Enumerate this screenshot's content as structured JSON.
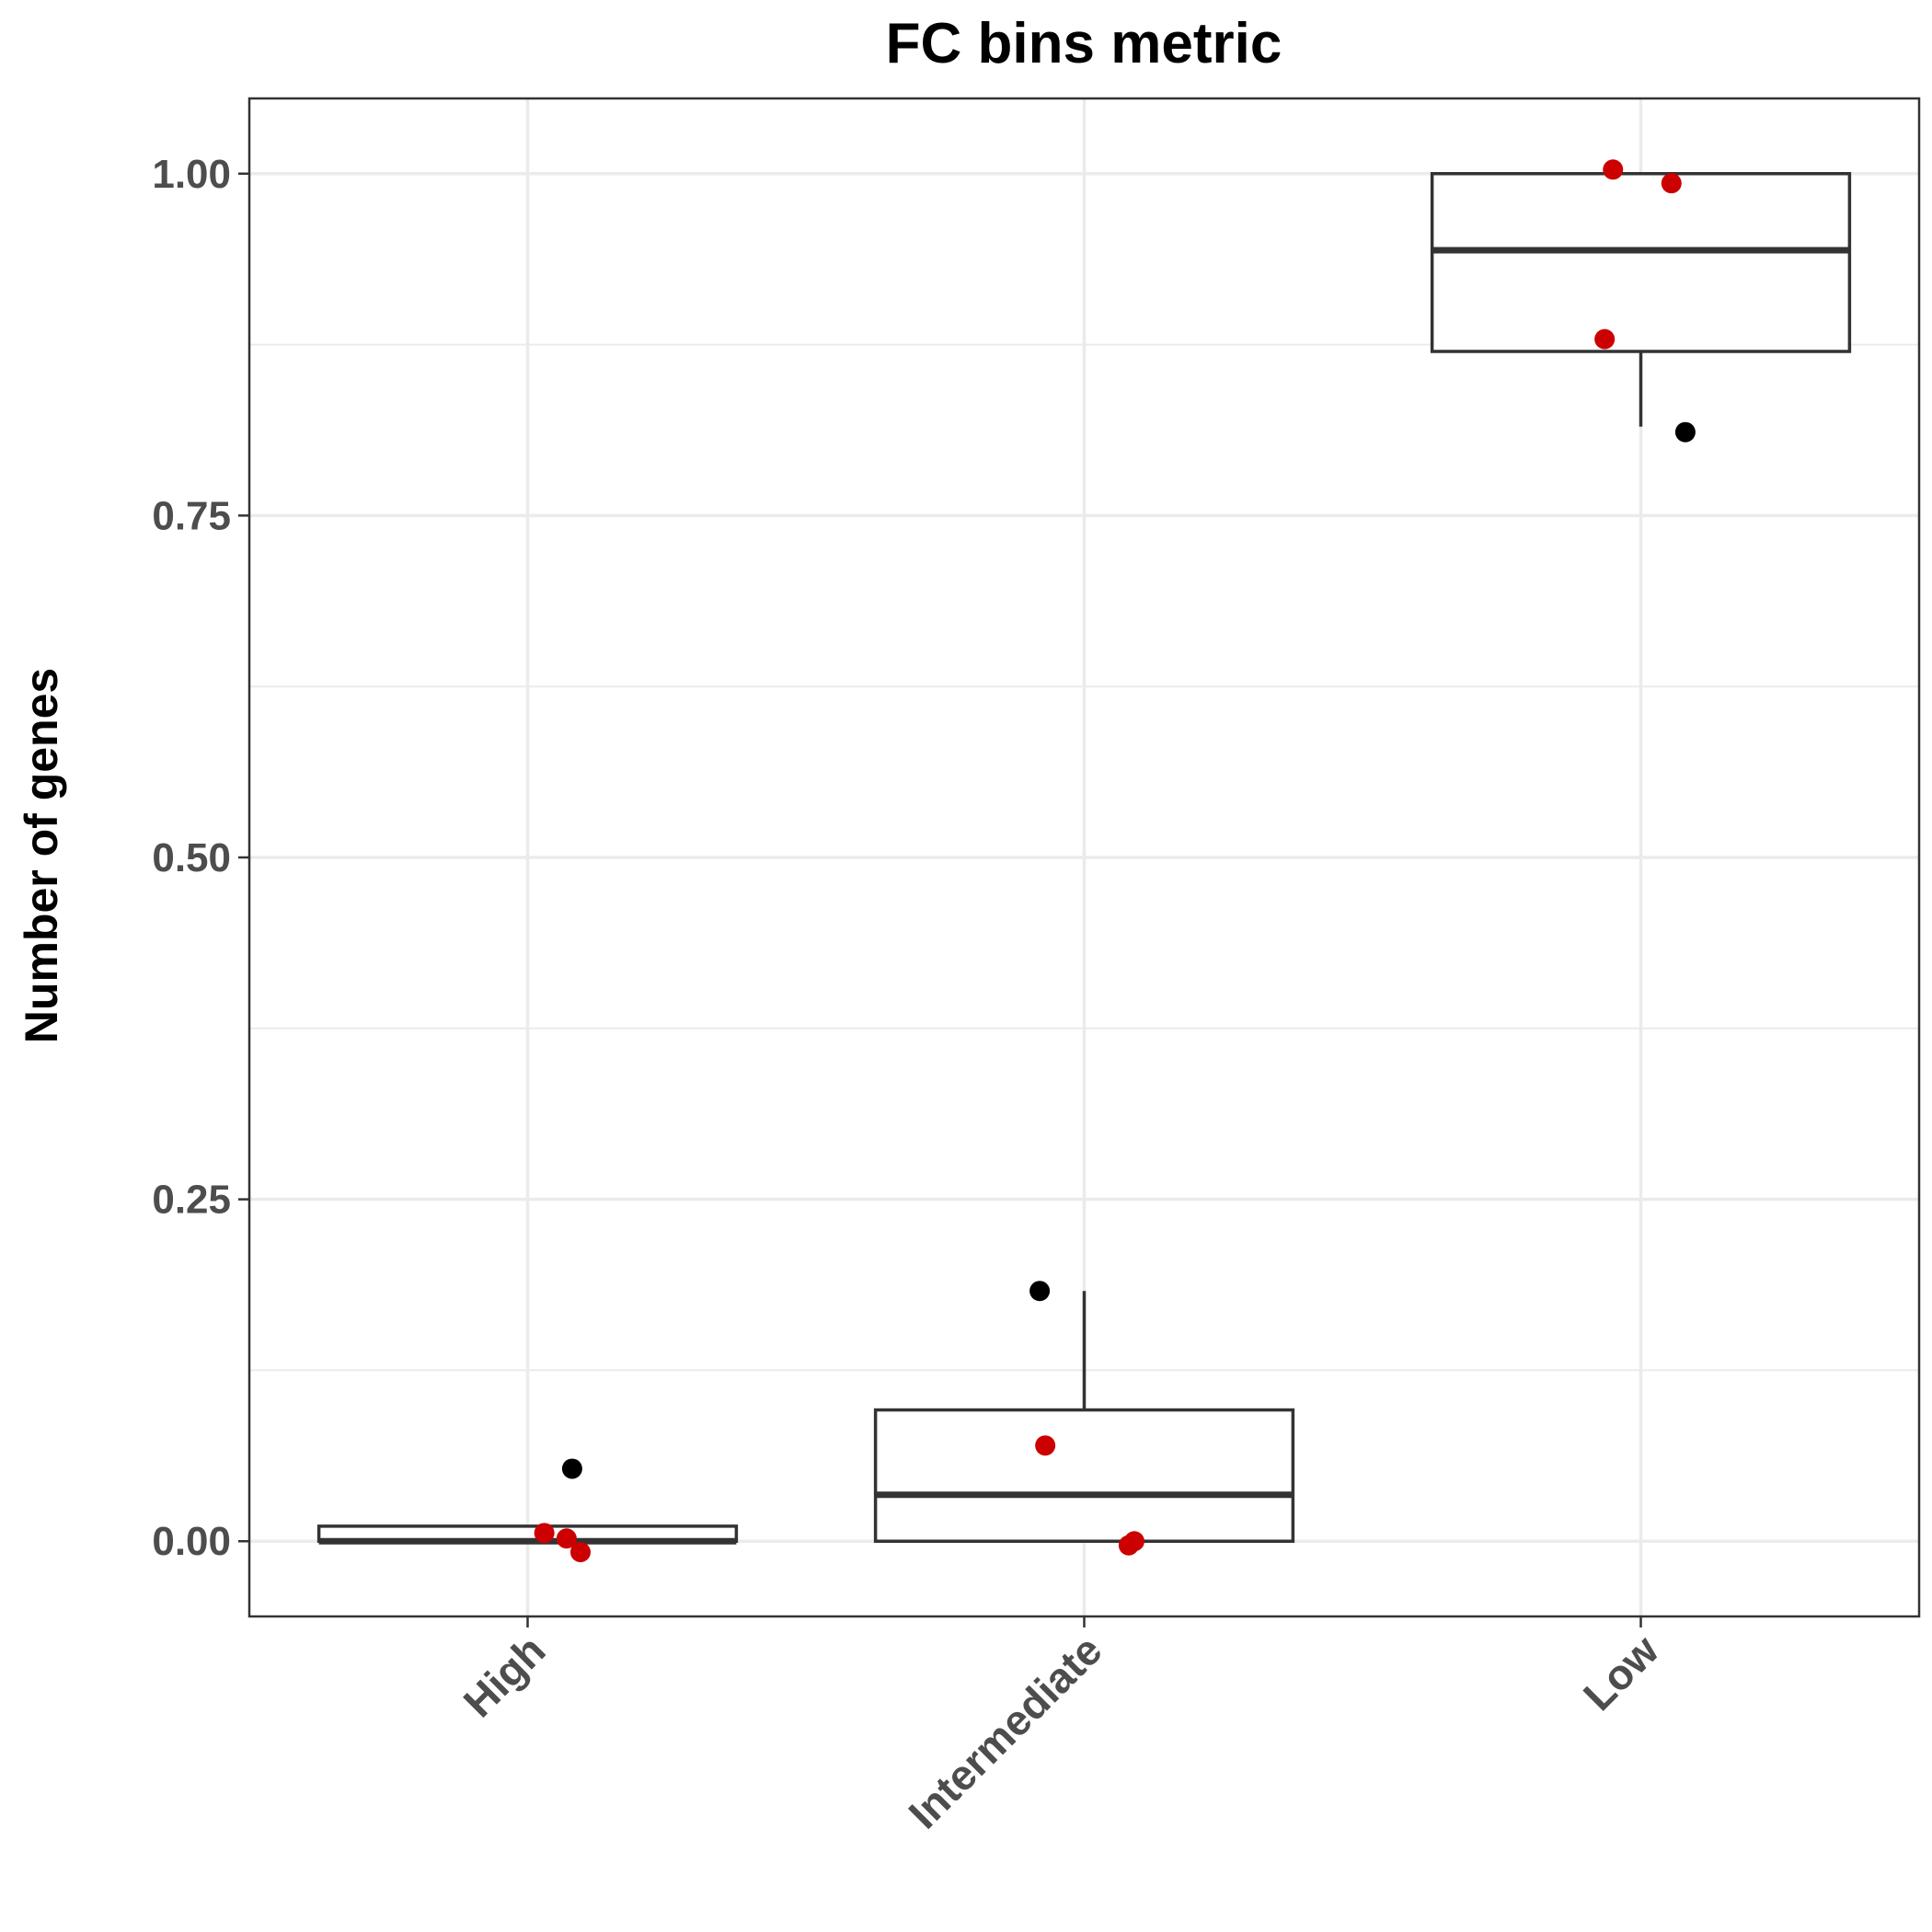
{
  "chart_data": {
    "type": "boxplot",
    "title": "FC bins metric",
    "xlabel": "",
    "ylabel": "Number of genes",
    "ylim": [
      -0.055,
      1.055
    ],
    "yticks": [
      0.0,
      0.25,
      0.5,
      0.75,
      1.0
    ],
    "ytick_labels": [
      "0.00",
      "0.25",
      "0.50",
      "0.75",
      "1.00"
    ],
    "categories": [
      "High",
      "Intermediate",
      "Low"
    ],
    "grid": true,
    "point_colors": {
      "outlier": "#000000",
      "jitter": "#cc0000"
    },
    "boxes": [
      {
        "category": "High",
        "lower_whisker": 0.0,
        "q1": 0.0,
        "median": 0.0,
        "q3": 0.011,
        "upper_whisker": 0.011,
        "outliers": [
          0.053
        ]
      },
      {
        "category": "Intermediate",
        "lower_whisker": 0.0,
        "q1": 0.0,
        "median": 0.034,
        "q3": 0.096,
        "upper_whisker": 0.183,
        "outliers": [
          0.183
        ]
      },
      {
        "category": "Low",
        "lower_whisker": 0.815,
        "q1": 0.87,
        "median": 0.944,
        "q3": 1.0,
        "upper_whisker": 1.0,
        "outliers": [
          0.811
        ]
      }
    ],
    "points": [
      {
        "category": "High",
        "value": 0.006,
        "jitter": 0.03
      },
      {
        "category": "High",
        "value": 0.002,
        "jitter": 0.07
      },
      {
        "category": "High",
        "value": -0.008,
        "jitter": 0.095
      },
      {
        "category": "Intermediate",
        "value": 0.07,
        "jitter": -0.07
      },
      {
        "category": "Intermediate",
        "value": -0.003,
        "jitter": 0.08
      },
      {
        "category": "Intermediate",
        "value": 0.0,
        "jitter": 0.09
      },
      {
        "category": "Low",
        "value": 1.003,
        "jitter": -0.05
      },
      {
        "category": "Low",
        "value": 0.993,
        "jitter": 0.055
      },
      {
        "category": "Low",
        "value": 0.879,
        "jitter": -0.065
      }
    ]
  }
}
